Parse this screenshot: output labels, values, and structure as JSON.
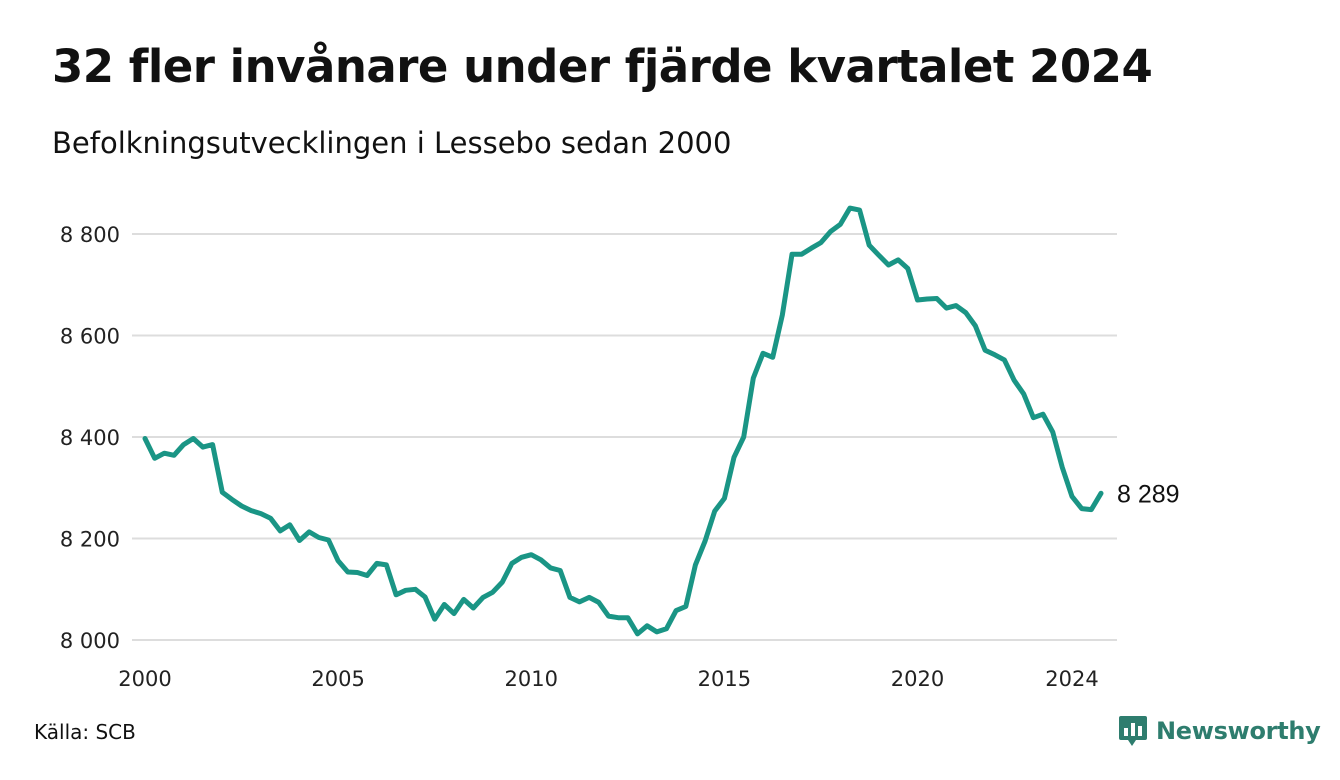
{
  "header": {
    "title": "32 fler invånare under fjärde kvartalet 2024",
    "subtitle": "Befolkningsutvecklingen i Lessebo sedan 2000"
  },
  "footer": {
    "source": "Källa: SCB",
    "logo_text": "Newsworthy",
    "logo_icon": "bar-chart-speech-bubble-icon"
  },
  "colors": {
    "line": "#1a9585",
    "grid": "#dddddd",
    "logo": "#2e7d6e"
  },
  "chart_data": {
    "type": "line",
    "title": "32 fler invånare under fjärde kvartalet 2024",
    "subtitle": "Befolkningsutvecklingen i Lessebo sedan 2000",
    "xlabel": "",
    "ylabel": "",
    "x_ticks": [
      2000,
      2005,
      2010,
      2015,
      2020,
      2024
    ],
    "x_tick_labels": [
      "2000",
      "2005",
      "2010",
      "2015",
      "2020",
      "2024"
    ],
    "y_ticks": [
      8000,
      8200,
      8400,
      8600,
      8800
    ],
    "y_tick_labels": [
      "8 000",
      "8 200",
      "8 400",
      "8 600",
      "8 800"
    ],
    "xlim": [
      2000,
      2024.75
    ],
    "ylim": [
      8000,
      8850
    ],
    "grid": true,
    "legend": "none",
    "end_label": "8 289",
    "series": [
      {
        "x": [
          2000,
          2000.25,
          2000.5,
          2000.75,
          2001,
          2001.25,
          2001.5,
          2001.75,
          2002,
          2002.25,
          2002.5,
          2002.75,
          2003,
          2003.25,
          2003.5,
          2003.75,
          2004,
          2004.25,
          2004.5,
          2004.75,
          2005,
          2005.25,
          2005.5,
          2005.75,
          2006,
          2006.25,
          2006.5,
          2006.75,
          2007,
          2007.25,
          2007.5,
          2007.75,
          2008,
          2008.25,
          2008.5,
          2008.75,
          2009,
          2009.25,
          2009.5,
          2009.75,
          2010,
          2010.25,
          2010.5,
          2010.75,
          2011,
          2011.25,
          2011.5,
          2011.75,
          2012,
          2012.25,
          2012.5,
          2012.75,
          2013,
          2013.25,
          2013.5,
          2013.75,
          2014,
          2014.25,
          2014.5,
          2014.75,
          2015,
          2015.25,
          2015.5,
          2015.75,
          2016,
          2016.25,
          2016.5,
          2016.75,
          2017,
          2017.25,
          2017.5,
          2017.75,
          2018,
          2018.25,
          2018.5,
          2018.75,
          2019,
          2019.25,
          2019.5,
          2019.75,
          2020,
          2020.25,
          2020.5,
          2020.75,
          2021,
          2021.25,
          2021.5,
          2021.75,
          2022,
          2022.25,
          2022.5,
          2022.75,
          2023,
          2023.25,
          2023.5,
          2023.75,
          2024,
          2024.25,
          2024.5,
          2024.75
        ],
        "y": [
          8397,
          8358,
          8368,
          8364,
          8385,
          8397,
          8380,
          8385,
          8291,
          8277,
          8264,
          8255,
          8249,
          8240,
          8215,
          8227,
          8196,
          8213,
          8202,
          8197,
          8156,
          8134,
          8133,
          8127,
          8151,
          8148,
          8089,
          8098,
          8100,
          8085,
          8041,
          8070,
          8052,
          8080,
          8063,
          8084,
          8094,
          8114,
          8151,
          8163,
          8168,
          8158,
          8142,
          8137,
          8084,
          8075,
          8084,
          8074,
          8047,
          8044,
          8044,
          8012,
          8028,
          8016,
          8022,
          8058,
          8066,
          8148,
          8195,
          8254,
          8279,
          8360,
          8400,
          8516,
          8565,
          8557,
          8640,
          8760,
          8760,
          8772,
          8783,
          8805,
          8819,
          8851,
          8847,
          8778,
          8758,
          8739,
          8749,
          8732,
          8670,
          8672,
          8673,
          8654,
          8659,
          8645,
          8619,
          8571,
          8562,
          8552,
          8512,
          8485,
          8438,
          8445,
          8410,
          8340,
          8283,
          8259,
          8257,
          8289
        ]
      }
    ]
  }
}
